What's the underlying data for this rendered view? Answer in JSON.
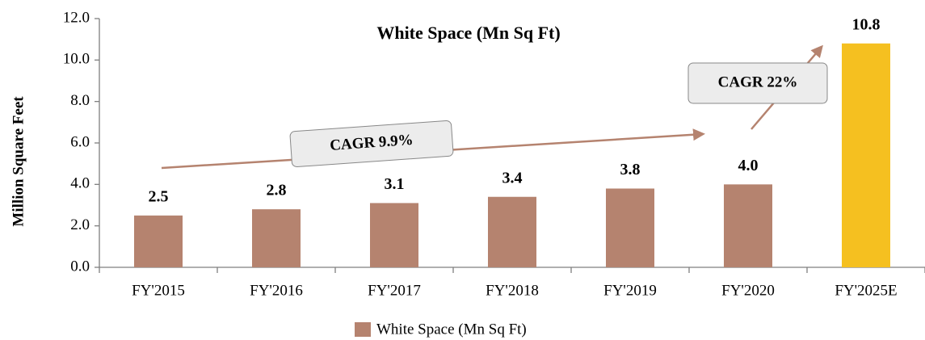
{
  "chart_data": {
    "type": "bar",
    "title": "White Space (Mn Sq Ft)",
    "y_label": "Million Square Feet",
    "categories": [
      "FY'2015",
      "FY'2016",
      "FY'2017",
      "FY'2018",
      "FY'2019",
      "FY'2020",
      "FY'2025E"
    ],
    "series": [
      {
        "name": "White Space (Mn Sq Ft)",
        "color": "#b5836f",
        "values": [
          2.5,
          2.8,
          3.1,
          3.4,
          3.8,
          4.0,
          10.8
        ],
        "value_labels": [
          "2.5",
          "2.8",
          "3.1",
          "3.4",
          "3.8",
          "4.0",
          "10.8"
        ]
      }
    ],
    "bar_colors": [
      "#b5836f",
      "#b5836f",
      "#b5836f",
      "#b5836f",
      "#b5836f",
      "#b5836f",
      "#f5c020"
    ],
    "ylim": [
      0,
      12
    ],
    "yticks": [
      {
        "value": 0,
        "label": "0.0"
      },
      {
        "value": 2,
        "label": "2.0"
      },
      {
        "value": 4,
        "label": "4.0"
      },
      {
        "value": 6,
        "label": "6.0"
      },
      {
        "value": 8,
        "label": "8.0"
      },
      {
        "value": 10,
        "label": "10.0"
      },
      {
        "value": 12,
        "label": "12.0"
      }
    ],
    "grid": false,
    "legend": "bottom",
    "annotations": [
      "CAGR 9.9%",
      "CAGR 22%"
    ]
  }
}
